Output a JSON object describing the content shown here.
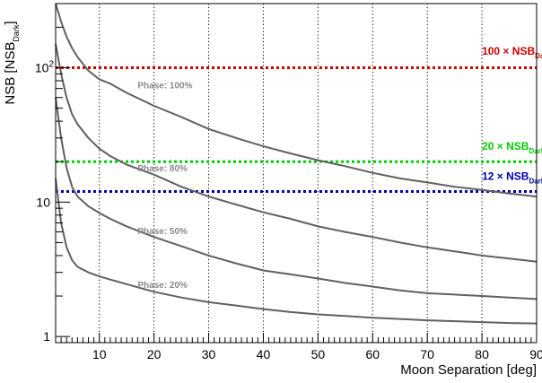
{
  "chart_data": {
    "type": "line",
    "xlabel": "Moon Separation [deg]",
    "ylabel": "NSB [NSB",
    "ylabel_sub": "Dark",
    "ylabel_close": "]",
    "xlim": [
      2,
      90
    ],
    "ylim": [
      0.9,
      300
    ],
    "yscale": "log",
    "grid": "vertical dotted lines at x ticks",
    "x_ticks": [
      10,
      20,
      30,
      40,
      50,
      60,
      70,
      80,
      90
    ],
    "y_ticks": [
      {
        "value": 1,
        "label": "1"
      },
      {
        "value": 10,
        "label": "10"
      },
      {
        "value": 100,
        "label": "10",
        "sup": "2"
      }
    ],
    "series": [
      {
        "name": "Phase: 100%",
        "label_at": [
          17,
          70
        ],
        "points": [
          [
            2,
            300
          ],
          [
            3,
            220
          ],
          [
            4,
            170
          ],
          [
            5,
            140
          ],
          [
            6,
            120
          ],
          [
            8,
            95
          ],
          [
            10,
            82
          ],
          [
            12,
            76
          ],
          [
            15,
            65
          ],
          [
            20,
            52
          ],
          [
            25,
            43
          ],
          [
            30,
            35
          ],
          [
            35,
            30
          ],
          [
            40,
            26
          ],
          [
            45,
            23
          ],
          [
            50,
            20.5
          ],
          [
            55,
            18.5
          ],
          [
            60,
            16.5
          ],
          [
            65,
            15
          ],
          [
            70,
            14
          ],
          [
            75,
            13
          ],
          [
            80,
            12.3
          ],
          [
            85,
            11.6
          ],
          [
            90,
            11
          ]
        ]
      },
      {
        "name": "Phase: 80%",
        "label_at": [
          17,
          17
        ],
        "points": [
          [
            2,
            150
          ],
          [
            3,
            90
          ],
          [
            4,
            60
          ],
          [
            5,
            45
          ],
          [
            6,
            38
          ],
          [
            8,
            30
          ],
          [
            10,
            25
          ],
          [
            12,
            22
          ],
          [
            15,
            19
          ],
          [
            20,
            16
          ],
          [
            25,
            13
          ],
          [
            30,
            11
          ],
          [
            35,
            9.6
          ],
          [
            40,
            8.4
          ],
          [
            45,
            7.5
          ],
          [
            50,
            6.6
          ],
          [
            55,
            6
          ],
          [
            60,
            5.5
          ],
          [
            65,
            5
          ],
          [
            70,
            4.6
          ],
          [
            75,
            4.3
          ],
          [
            80,
            4
          ],
          [
            85,
            3.8
          ],
          [
            90,
            3.6
          ]
        ]
      },
      {
        "name": "Phase: 50%",
        "label_at": [
          17,
          5.8
        ],
        "points": [
          [
            2,
            60
          ],
          [
            3,
            30
          ],
          [
            4,
            18
          ],
          [
            5,
            13
          ],
          [
            6,
            11
          ],
          [
            8,
            9.3
          ],
          [
            10,
            8.3
          ],
          [
            12,
            7.5
          ],
          [
            15,
            6.6
          ],
          [
            20,
            5.5
          ],
          [
            25,
            4.7
          ],
          [
            30,
            4
          ],
          [
            35,
            3.5
          ],
          [
            40,
            3.1
          ],
          [
            45,
            2.9
          ],
          [
            50,
            2.7
          ],
          [
            55,
            2.5
          ],
          [
            60,
            2.35
          ],
          [
            65,
            2.2
          ],
          [
            70,
            2.1
          ],
          [
            75,
            2.05
          ],
          [
            80,
            2
          ],
          [
            85,
            1.95
          ],
          [
            90,
            1.9
          ]
        ]
      },
      {
        "name": "Phase: 20%",
        "label_at": [
          17,
          2.3
        ],
        "points": [
          [
            2,
            15
          ],
          [
            3,
            7
          ],
          [
            4,
            4.6
          ],
          [
            5,
            3.7
          ],
          [
            6,
            3.3
          ],
          [
            8,
            3
          ],
          [
            10,
            2.8
          ],
          [
            12,
            2.65
          ],
          [
            15,
            2.45
          ],
          [
            20,
            2.15
          ],
          [
            25,
            1.95
          ],
          [
            30,
            1.8
          ],
          [
            35,
            1.7
          ],
          [
            40,
            1.6
          ],
          [
            45,
            1.52
          ],
          [
            50,
            1.46
          ],
          [
            55,
            1.42
          ],
          [
            60,
            1.38
          ],
          [
            65,
            1.35
          ],
          [
            70,
            1.32
          ],
          [
            75,
            1.3
          ],
          [
            80,
            1.28
          ],
          [
            85,
            1.26
          ],
          [
            90,
            1.25
          ]
        ]
      }
    ],
    "thresholds": [
      {
        "value": 100,
        "label": "100 × NSB",
        "sub": "Dark",
        "color": "#cc0000",
        "label_at": [
          80,
          125
        ]
      },
      {
        "value": 20,
        "label": "20 × NSB",
        "sub": "Dark",
        "color": "#00cc00",
        "label_at": [
          80,
          24.5
        ]
      },
      {
        "value": 12,
        "label": "12 × NSB",
        "sub": "Dark",
        "color": "#0000aa",
        "label_at": [
          80,
          14.6
        ]
      }
    ],
    "curve_color": "#606060",
    "label_color": "#8a8a8a"
  }
}
